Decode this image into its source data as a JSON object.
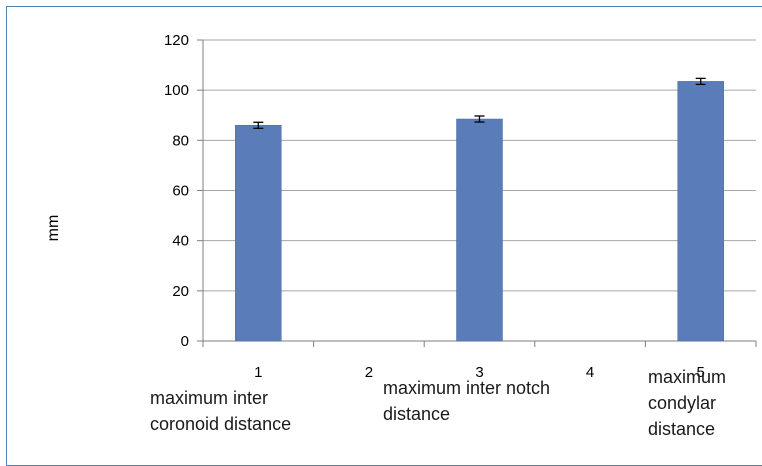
{
  "chart_data": {
    "type": "bar",
    "ylabel": "mm",
    "xlabel": "",
    "ylim": [
      0,
      120
    ],
    "yticks": [
      0,
      20,
      40,
      60,
      80,
      100,
      120
    ],
    "x_ticks": [
      "1",
      "2",
      "3",
      "4",
      "5"
    ],
    "values": [
      86,
      null,
      88.5,
      null,
      103.5
    ],
    "errors": [
      1.2,
      null,
      1.2,
      null,
      1.2
    ],
    "category_labels": [
      {
        "x_tick": "1",
        "lines": [
          "maximum inter",
          "coronoid distance"
        ]
      },
      {
        "x_tick": "3",
        "lines": [
          "maximum inter notch",
          "distance"
        ]
      },
      {
        "x_tick": "5",
        "lines": [
          "maximum",
          "condylar",
          "distance"
        ]
      }
    ],
    "grid": true,
    "bar_color": "#5a7dba"
  }
}
